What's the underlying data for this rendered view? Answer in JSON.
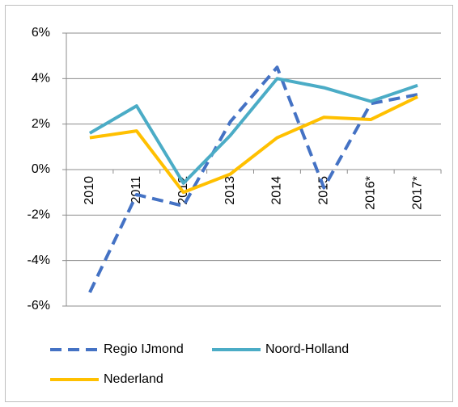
{
  "chart_data": {
    "type": "line",
    "categories": [
      "2010",
      "2011",
      "2012",
      "2013",
      "2014",
      "2015",
      "2016*",
      "2017*"
    ],
    "series": [
      {
        "name": "Regio IJmond",
        "color": "#4472c4",
        "line_style": "dashed",
        "values": [
          -5.4,
          -1.1,
          -1.6,
          2.1,
          4.5,
          -0.8,
          2.9,
          3.3
        ]
      },
      {
        "name": "Noord-Holland",
        "color": "#4bacc6",
        "line_style": "solid",
        "values": [
          1.6,
          2.8,
          -0.6,
          1.5,
          4.0,
          3.6,
          3.0,
          3.7
        ]
      },
      {
        "name": "Nederland",
        "color": "#ffc000",
        "line_style": "solid",
        "values": [
          1.4,
          1.7,
          -1.0,
          -0.2,
          1.4,
          2.3,
          2.2,
          3.2
        ]
      }
    ],
    "ylim": [
      -6,
      6
    ],
    "yticks": [
      {
        "value": -6,
        "label": "-6%"
      },
      {
        "value": -4,
        "label": "-4%"
      },
      {
        "value": -2,
        "label": "-2%"
      },
      {
        "value": 0,
        "label": "0%"
      },
      {
        "value": 2,
        "label": "2%"
      },
      {
        "value": 4,
        "label": "4%"
      },
      {
        "value": 6,
        "label": "6%"
      }
    ],
    "grid": true,
    "legend": "bottom"
  }
}
